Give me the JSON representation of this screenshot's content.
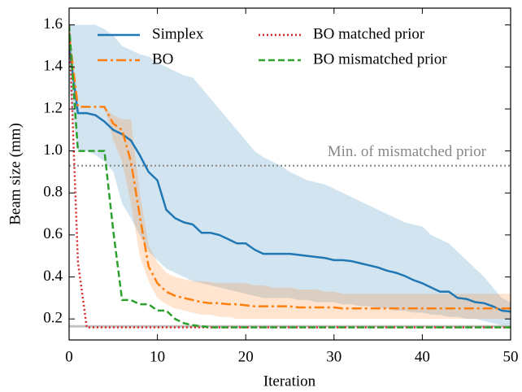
{
  "chart_data": {
    "type": "line",
    "xlabel": "Iteration",
    "ylabel": "Beam size (mm)",
    "xlim": [
      0,
      50
    ],
    "ylim": [
      0.1,
      1.68
    ],
    "xticks": [
      0,
      10,
      20,
      30,
      40,
      50
    ],
    "yticks": [
      0.2,
      0.4,
      0.6,
      0.8,
      {
        "value": 1.0,
        "label": "1.0"
      },
      1.2,
      1.4,
      1.6
    ],
    "legend": "upper right",
    "x": [
      0,
      1,
      2,
      3,
      4,
      5,
      6,
      7,
      8,
      9,
      10,
      11,
      12,
      13,
      14,
      15,
      16,
      17,
      18,
      19,
      20,
      21,
      22,
      23,
      24,
      25,
      26,
      27,
      28,
      29,
      30,
      31,
      32,
      33,
      34,
      35,
      36,
      37,
      38,
      39,
      40,
      41,
      42,
      43,
      44,
      45,
      46,
      47,
      48,
      49,
      50
    ],
    "series": [
      {
        "name": "Simplex",
        "color": "#1f77b4",
        "linestyle": "solid",
        "values": [
          1.5,
          1.18,
          1.18,
          1.17,
          1.14,
          1.1,
          1.08,
          1.05,
          0.98,
          0.9,
          0.86,
          0.72,
          0.68,
          0.66,
          0.65,
          0.61,
          0.61,
          0.6,
          0.58,
          0.56,
          0.56,
          0.53,
          0.51,
          0.51,
          0.51,
          0.51,
          0.505,
          0.5,
          0.495,
          0.49,
          0.48,
          0.48,
          0.475,
          0.465,
          0.455,
          0.445,
          0.43,
          0.42,
          0.405,
          0.385,
          0.37,
          0.35,
          0.33,
          0.33,
          0.3,
          0.295,
          0.28,
          0.275,
          0.26,
          0.24,
          0.235
        ],
        "band_upper": [
          1.6,
          1.6,
          1.6,
          1.6,
          1.58,
          1.55,
          1.5,
          1.48,
          1.46,
          1.45,
          1.42,
          1.4,
          1.38,
          1.36,
          1.35,
          1.3,
          1.25,
          1.2,
          1.15,
          1.1,
          1.05,
          1.0,
          0.97,
          0.95,
          0.93,
          0.9,
          0.88,
          0.86,
          0.85,
          0.84,
          0.82,
          0.8,
          0.78,
          0.76,
          0.74,
          0.72,
          0.7,
          0.68,
          0.66,
          0.65,
          0.64,
          0.6,
          0.58,
          0.56,
          0.52,
          0.48,
          0.44,
          0.4,
          0.35,
          0.3,
          0.28
        ],
        "band_lower": [
          1.3,
          1.0,
          1.0,
          0.98,
          0.95,
          0.9,
          0.75,
          0.68,
          0.6,
          0.52,
          0.48,
          0.44,
          0.42,
          0.4,
          0.38,
          0.37,
          0.36,
          0.35,
          0.34,
          0.33,
          0.32,
          0.31,
          0.3,
          0.3,
          0.3,
          0.3,
          0.29,
          0.29,
          0.28,
          0.28,
          0.28,
          0.27,
          0.27,
          0.26,
          0.26,
          0.25,
          0.25,
          0.24,
          0.24,
          0.23,
          0.23,
          0.22,
          0.22,
          0.21,
          0.21,
          0.2,
          0.2,
          0.19,
          0.18,
          0.17,
          0.17
        ]
      },
      {
        "name": "BO",
        "color": "#ff7f0e",
        "linestyle": "dashdot",
        "values": [
          1.55,
          1.21,
          1.21,
          1.21,
          1.21,
          1.13,
          1.1,
          0.95,
          0.69,
          0.45,
          0.37,
          0.33,
          0.31,
          0.3,
          0.29,
          0.28,
          0.275,
          0.275,
          0.27,
          0.27,
          0.265,
          0.26,
          0.26,
          0.26,
          0.26,
          0.26,
          0.255,
          0.255,
          0.255,
          0.255,
          0.255,
          0.25,
          0.25,
          0.25,
          0.25,
          0.25,
          0.25,
          0.25,
          0.25,
          0.25,
          0.25,
          0.25,
          0.25,
          0.25,
          0.25,
          0.25,
          0.25,
          0.25,
          0.25,
          0.25,
          0.25
        ],
        "band_upper": [
          1.6,
          1.21,
          1.21,
          1.21,
          1.21,
          1.17,
          1.15,
          1.15,
          0.8,
          0.55,
          0.47,
          0.42,
          0.4,
          0.39,
          0.38,
          0.38,
          0.375,
          0.37,
          0.37,
          0.37,
          0.37,
          0.36,
          0.36,
          0.35,
          0.35,
          0.35,
          0.34,
          0.34,
          0.34,
          0.33,
          0.33,
          0.32,
          0.32,
          0.32,
          0.32,
          0.32,
          0.32,
          0.32,
          0.32,
          0.32,
          0.32,
          0.32,
          0.32,
          0.32,
          0.32,
          0.32,
          0.32,
          0.32,
          0.32,
          0.32,
          0.32
        ],
        "band_lower": [
          1.5,
          1.21,
          1.21,
          1.21,
          1.21,
          1.05,
          0.95,
          0.75,
          0.5,
          0.38,
          0.3,
          0.27,
          0.25,
          0.24,
          0.23,
          0.22,
          0.22,
          0.21,
          0.21,
          0.2,
          0.2,
          0.2,
          0.2,
          0.2,
          0.2,
          0.2,
          0.2,
          0.2,
          0.2,
          0.2,
          0.2,
          0.2,
          0.2,
          0.2,
          0.2,
          0.2,
          0.2,
          0.2,
          0.2,
          0.2,
          0.2,
          0.2,
          0.2,
          0.2,
          0.2,
          0.2,
          0.2,
          0.2,
          0.2,
          0.2,
          0.2
        ]
      },
      {
        "name": "BO matched prior",
        "color": "#d62728",
        "linestyle": "dotted",
        "values": [
          1.6,
          0.47,
          0.16,
          0.16,
          0.16,
          0.16,
          0.16,
          0.16,
          0.16,
          0.16,
          0.16,
          0.16,
          0.16,
          0.16,
          0.16,
          0.16,
          0.16,
          0.16,
          0.16,
          0.16,
          0.16,
          0.16,
          0.16,
          0.16,
          0.16,
          0.16,
          0.16,
          0.16,
          0.16,
          0.16,
          0.16,
          0.16,
          0.16,
          0.16,
          0.16,
          0.16,
          0.16,
          0.16,
          0.16,
          0.16,
          0.16,
          0.16,
          0.16,
          0.16,
          0.16,
          0.16,
          0.16,
          0.16,
          0.16,
          0.16,
          0.16
        ]
      },
      {
        "name": "BO mismatched prior",
        "color": "#2ca02c",
        "linestyle": "dashed",
        "values": [
          1.6,
          1.0,
          1.0,
          1.0,
          1.0,
          0.62,
          0.29,
          0.29,
          0.27,
          0.27,
          0.24,
          0.24,
          0.2,
          0.18,
          0.17,
          0.165,
          0.16,
          0.16,
          0.16,
          0.16,
          0.16,
          0.16,
          0.16,
          0.16,
          0.16,
          0.16,
          0.16,
          0.16,
          0.16,
          0.16,
          0.16,
          0.16,
          0.16,
          0.16,
          0.16,
          0.16,
          0.16,
          0.16,
          0.16,
          0.16,
          0.16,
          0.16,
          0.16,
          0.16,
          0.16,
          0.16,
          0.16,
          0.16,
          0.16,
          0.16,
          0.16
        ]
      }
    ],
    "hlines": [
      {
        "value": 0.93,
        "label": "Min. of mismatched prior",
        "color": "#888888",
        "linestyle": "dotted"
      },
      {
        "value": 0.165,
        "color": "#999999",
        "linestyle": "solid"
      }
    ]
  }
}
